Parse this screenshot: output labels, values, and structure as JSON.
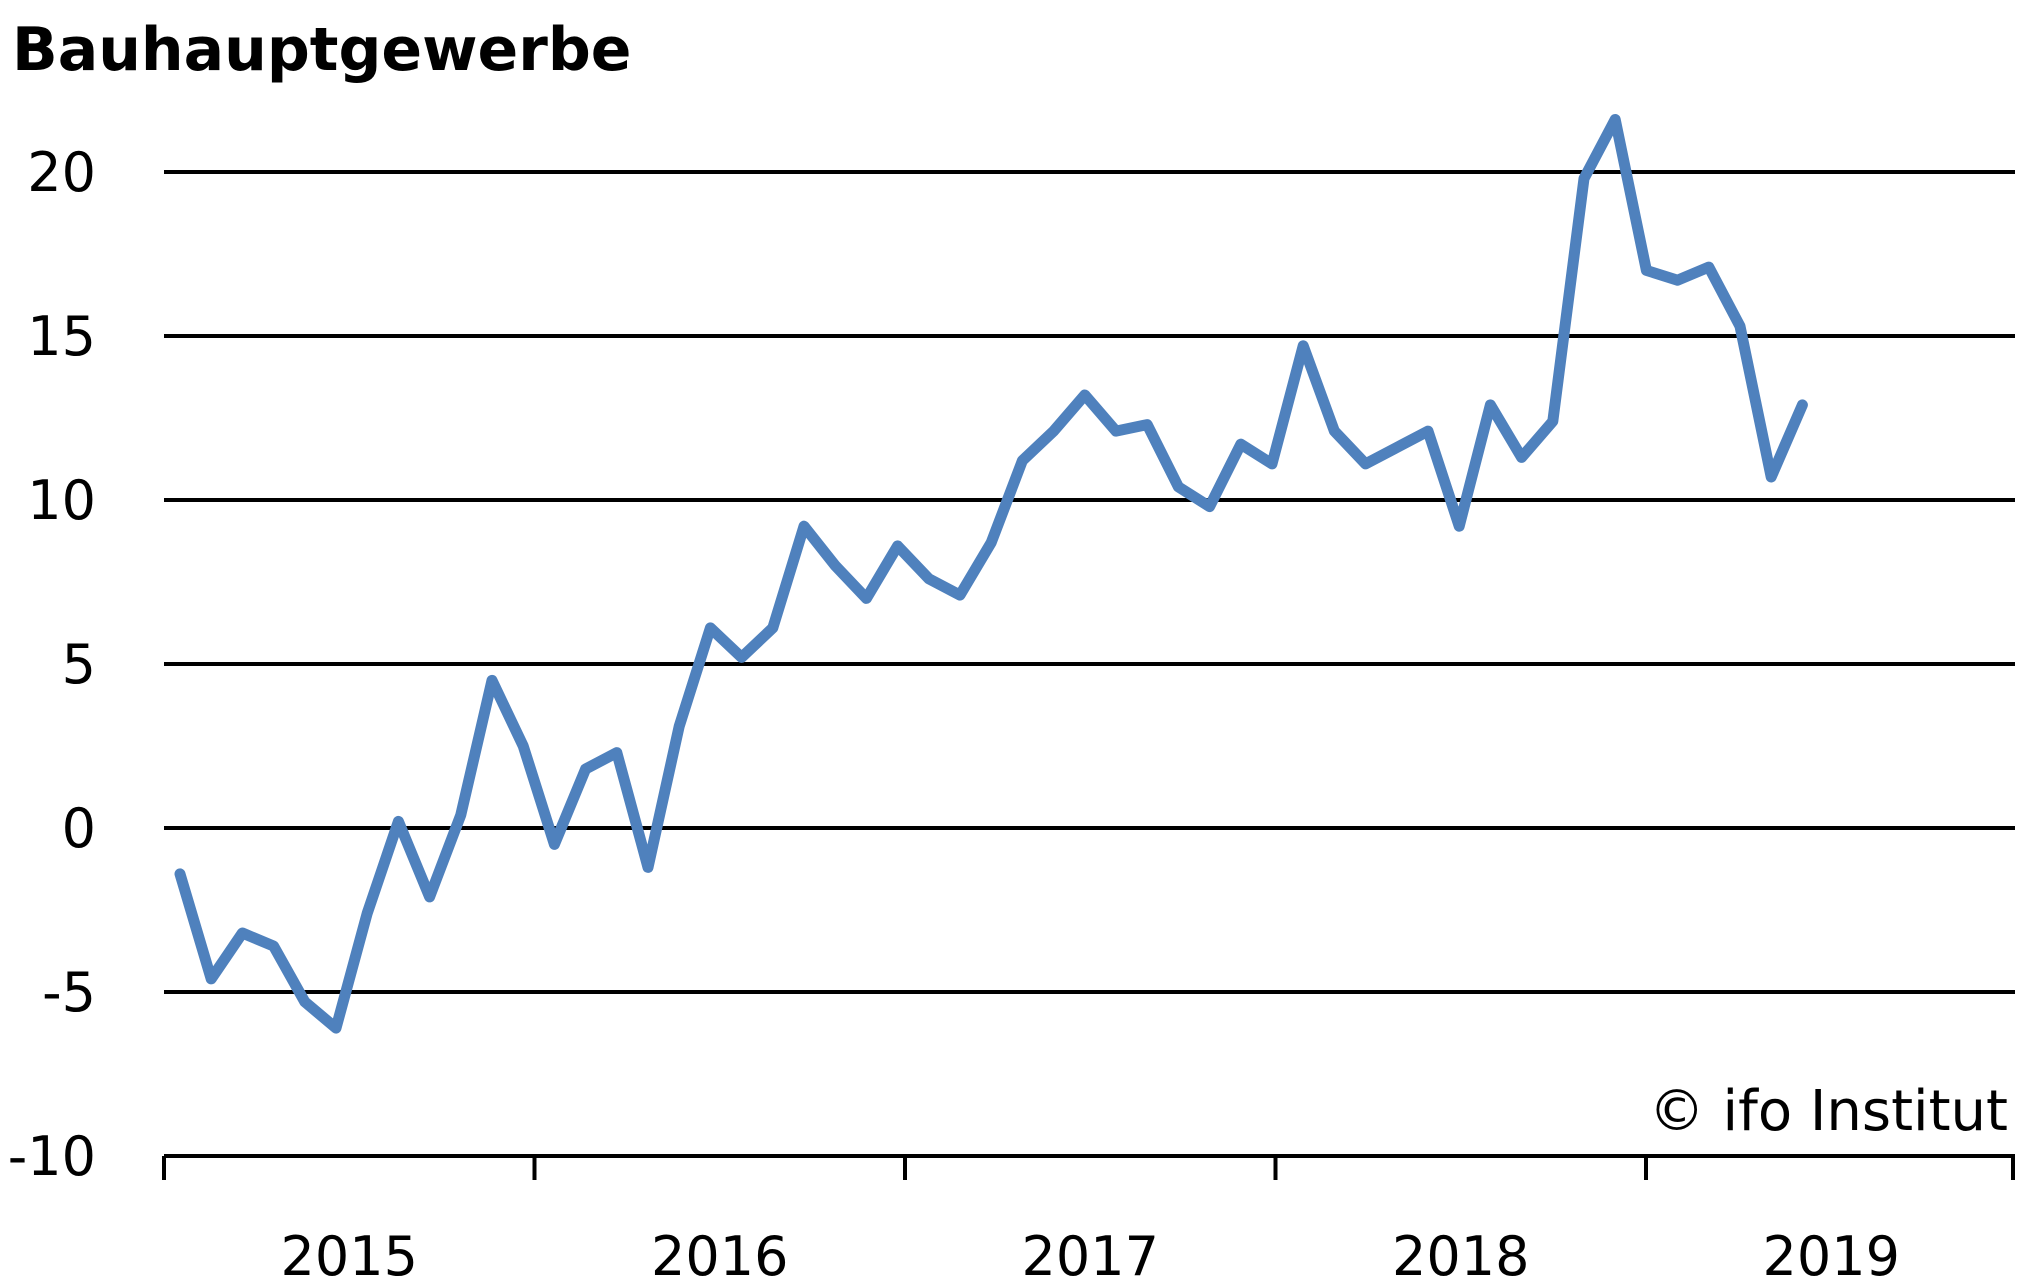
{
  "chart_data": {
    "type": "line",
    "title": "Bauhauptgewerbe",
    "credit": "© ifo Institut",
    "xlabel": "",
    "ylabel": "",
    "ylim": [
      -10,
      20
    ],
    "yticks": [
      -10,
      -5,
      0,
      5,
      10,
      15,
      20
    ],
    "year_labels": [
      "2015",
      "2016",
      "2017",
      "2018",
      "2019"
    ],
    "grid": true,
    "legend": "none",
    "colors": {
      "series": "#4f81bd",
      "grid": "#000000"
    },
    "series": [
      {
        "values": [
          -1.4,
          -4.6,
          -3.2,
          -3.6,
          -5.3,
          -6.1,
          -2.6,
          0.2,
          -2.1,
          0.4,
          4.5,
          2.5,
          -0.5,
          1.8,
          2.3,
          -1.2,
          3.1,
          6.1,
          5.2,
          6.1,
          9.2,
          8.0,
          7.0,
          8.6,
          7.6,
          7.1,
          8.7,
          11.2,
          12.1,
          13.2,
          12.1,
          12.3,
          10.4,
          9.8,
          11.7,
          11.1,
          14.7,
          12.1,
          11.1,
          11.6,
          12.1,
          9.2,
          12.9,
          11.3,
          12.4,
          19.8,
          21.6,
          17.0,
          16.7,
          17.1,
          15.3,
          10.7,
          12.9
        ]
      }
    ]
  }
}
